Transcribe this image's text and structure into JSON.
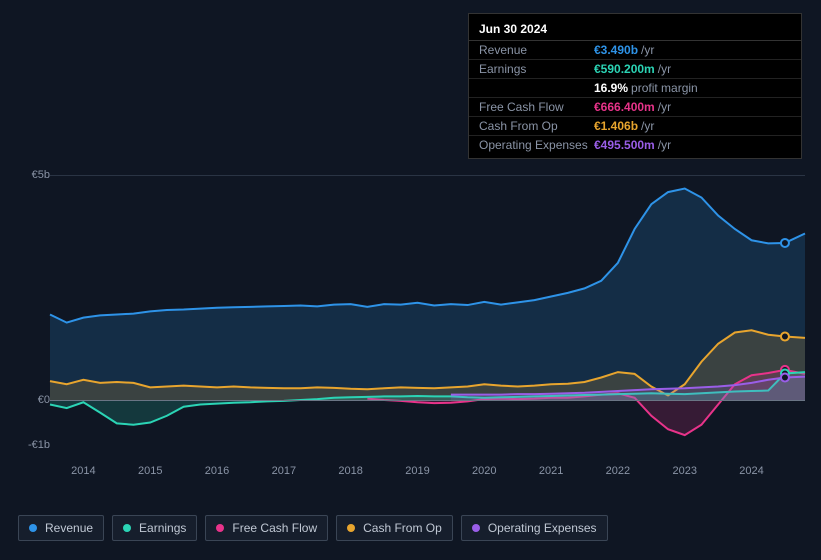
{
  "background_color": "#0f1623",
  "tooltip": {
    "date": "Jun 30 2024",
    "rows": [
      {
        "label": "Revenue",
        "value": "€3.490b",
        "unit": "/yr",
        "color": "#2e93e8"
      },
      {
        "label": "Earnings",
        "value": "€590.200m",
        "unit": "/yr",
        "color": "#2bd4b5"
      },
      {
        "label": "",
        "value": "16.9%",
        "unit": "profit margin",
        "color": "#ffffff"
      },
      {
        "label": "Free Cash Flow",
        "value": "€666.400m",
        "unit": "/yr",
        "color": "#e8338a"
      },
      {
        "label": "Cash From Op",
        "value": "€1.406b",
        "unit": "/yr",
        "color": "#e8a52e"
      },
      {
        "label": "Operating Expenses",
        "value": "€495.500m",
        "unit": "/yr",
        "color": "#9a5ee8"
      }
    ]
  },
  "chart": {
    "type": "line",
    "y_axis": {
      "min": -1,
      "max": 5,
      "ticks": [
        {
          "v": 5,
          "label": "€5b"
        },
        {
          "v": 0,
          "label": "€0"
        },
        {
          "v": -1,
          "label": "-€1b"
        }
      ],
      "label_color": "#8a94a6",
      "label_fontsize": 11
    },
    "x_axis": {
      "min": 2013.5,
      "max": 2024.8,
      "ticks": [
        2014,
        2015,
        2016,
        2017,
        2018,
        2019,
        2020,
        2021,
        2022,
        2023,
        2024
      ],
      "label_color": "#8a94a6",
      "label_fontsize": 11
    },
    "grid_color": "#2a3444",
    "zero_line_color": "#6a7585",
    "line_width": 2,
    "area_opacity": 0.18,
    "marker_x": 2024.5,
    "series": [
      {
        "name": "Revenue",
        "color": "#2e93e8",
        "marker": true,
        "points": [
          [
            2013.5,
            1.9
          ],
          [
            2013.75,
            1.72
          ],
          [
            2014,
            1.83
          ],
          [
            2014.25,
            1.88
          ],
          [
            2014.5,
            1.9
          ],
          [
            2014.75,
            1.92
          ],
          [
            2015,
            1.97
          ],
          [
            2015.25,
            2.0
          ],
          [
            2015.5,
            2.01
          ],
          [
            2015.75,
            2.03
          ],
          [
            2016,
            2.05
          ],
          [
            2016.25,
            2.06
          ],
          [
            2016.5,
            2.07
          ],
          [
            2016.75,
            2.08
          ],
          [
            2017,
            2.09
          ],
          [
            2017.25,
            2.1
          ],
          [
            2017.5,
            2.08
          ],
          [
            2017.75,
            2.12
          ],
          [
            2018,
            2.13
          ],
          [
            2018.25,
            2.07
          ],
          [
            2018.5,
            2.13
          ],
          [
            2018.75,
            2.12
          ],
          [
            2019,
            2.16
          ],
          [
            2019.25,
            2.1
          ],
          [
            2019.5,
            2.13
          ],
          [
            2019.75,
            2.11
          ],
          [
            2020,
            2.18
          ],
          [
            2020.25,
            2.12
          ],
          [
            2020.5,
            2.17
          ],
          [
            2020.75,
            2.22
          ],
          [
            2021,
            2.3
          ],
          [
            2021.25,
            2.38
          ],
          [
            2021.5,
            2.48
          ],
          [
            2021.75,
            2.65
          ],
          [
            2022,
            3.05
          ],
          [
            2022.25,
            3.8
          ],
          [
            2022.5,
            4.35
          ],
          [
            2022.75,
            4.62
          ],
          [
            2023,
            4.7
          ],
          [
            2023.25,
            4.5
          ],
          [
            2023.5,
            4.1
          ],
          [
            2023.75,
            3.8
          ],
          [
            2024,
            3.55
          ],
          [
            2024.25,
            3.48
          ],
          [
            2024.5,
            3.49
          ],
          [
            2024.8,
            3.7
          ]
        ]
      },
      {
        "name": "Cash From Op",
        "color": "#e8a52e",
        "marker": true,
        "points": [
          [
            2013.5,
            0.42
          ],
          [
            2013.75,
            0.35
          ],
          [
            2014,
            0.45
          ],
          [
            2014.25,
            0.38
          ],
          [
            2014.5,
            0.4
          ],
          [
            2014.75,
            0.38
          ],
          [
            2015,
            0.28
          ],
          [
            2015.25,
            0.3
          ],
          [
            2015.5,
            0.32
          ],
          [
            2015.75,
            0.3
          ],
          [
            2016,
            0.28
          ],
          [
            2016.25,
            0.3
          ],
          [
            2016.5,
            0.28
          ],
          [
            2016.75,
            0.27
          ],
          [
            2017,
            0.26
          ],
          [
            2017.25,
            0.26
          ],
          [
            2017.5,
            0.28
          ],
          [
            2017.75,
            0.27
          ],
          [
            2018,
            0.25
          ],
          [
            2018.25,
            0.24
          ],
          [
            2018.5,
            0.26
          ],
          [
            2018.75,
            0.28
          ],
          [
            2019,
            0.27
          ],
          [
            2019.25,
            0.26
          ],
          [
            2019.5,
            0.28
          ],
          [
            2019.75,
            0.3
          ],
          [
            2020,
            0.35
          ],
          [
            2020.25,
            0.32
          ],
          [
            2020.5,
            0.3
          ],
          [
            2020.75,
            0.32
          ],
          [
            2021,
            0.35
          ],
          [
            2021.25,
            0.36
          ],
          [
            2021.5,
            0.4
          ],
          [
            2021.75,
            0.5
          ],
          [
            2022,
            0.62
          ],
          [
            2022.25,
            0.58
          ],
          [
            2022.5,
            0.3
          ],
          [
            2022.75,
            0.1
          ],
          [
            2023,
            0.35
          ],
          [
            2023.25,
            0.85
          ],
          [
            2023.5,
            1.25
          ],
          [
            2023.75,
            1.5
          ],
          [
            2024,
            1.55
          ],
          [
            2024.25,
            1.45
          ],
          [
            2024.5,
            1.41
          ],
          [
            2024.8,
            1.38
          ]
        ]
      },
      {
        "name": "Free Cash Flow",
        "color": "#e8338a",
        "marker": true,
        "points": [
          [
            2018.25,
            0.03
          ],
          [
            2018.5,
            0.0
          ],
          [
            2018.75,
            -0.02
          ],
          [
            2019,
            -0.05
          ],
          [
            2019.25,
            -0.07
          ],
          [
            2019.5,
            -0.06
          ],
          [
            2019.75,
            -0.03
          ],
          [
            2020,
            0.02
          ],
          [
            2020.25,
            0.03
          ],
          [
            2020.5,
            0.02
          ],
          [
            2020.75,
            0.03
          ],
          [
            2021,
            0.05
          ],
          [
            2021.25,
            0.05
          ],
          [
            2021.5,
            0.08
          ],
          [
            2021.75,
            0.12
          ],
          [
            2022,
            0.15
          ],
          [
            2022.25,
            0.05
          ],
          [
            2022.5,
            -0.35
          ],
          [
            2022.75,
            -0.65
          ],
          [
            2023,
            -0.78
          ],
          [
            2023.25,
            -0.55
          ],
          [
            2023.5,
            -0.1
          ],
          [
            2023.75,
            0.35
          ],
          [
            2024,
            0.55
          ],
          [
            2024.25,
            0.6
          ],
          [
            2024.5,
            0.67
          ],
          [
            2024.8,
            0.58
          ]
        ]
      },
      {
        "name": "Earnings",
        "color": "#2bd4b5",
        "marker": true,
        "points": [
          [
            2013.5,
            -0.1
          ],
          [
            2013.75,
            -0.18
          ],
          [
            2014,
            -0.05
          ],
          [
            2014.25,
            -0.28
          ],
          [
            2014.5,
            -0.52
          ],
          [
            2014.75,
            -0.55
          ],
          [
            2015,
            -0.5
          ],
          [
            2015.25,
            -0.35
          ],
          [
            2015.5,
            -0.15
          ],
          [
            2015.75,
            -0.1
          ],
          [
            2016,
            -0.08
          ],
          [
            2016.25,
            -0.06
          ],
          [
            2016.5,
            -0.05
          ],
          [
            2016.75,
            -0.03
          ],
          [
            2017,
            -0.02
          ],
          [
            2017.25,
            0.0
          ],
          [
            2017.5,
            0.02
          ],
          [
            2017.75,
            0.05
          ],
          [
            2018,
            0.06
          ],
          [
            2018.25,
            0.07
          ],
          [
            2018.5,
            0.08
          ],
          [
            2018.75,
            0.08
          ],
          [
            2019,
            0.09
          ],
          [
            2019.25,
            0.08
          ],
          [
            2019.5,
            0.08
          ],
          [
            2019.75,
            0.06
          ],
          [
            2020,
            0.05
          ],
          [
            2020.25,
            0.06
          ],
          [
            2020.5,
            0.07
          ],
          [
            2020.75,
            0.08
          ],
          [
            2021,
            0.09
          ],
          [
            2021.25,
            0.1
          ],
          [
            2021.5,
            0.11
          ],
          [
            2021.75,
            0.12
          ],
          [
            2022,
            0.13
          ],
          [
            2022.25,
            0.14
          ],
          [
            2022.5,
            0.15
          ],
          [
            2022.75,
            0.14
          ],
          [
            2023,
            0.13
          ],
          [
            2023.25,
            0.15
          ],
          [
            2023.5,
            0.17
          ],
          [
            2023.75,
            0.19
          ],
          [
            2024,
            0.2
          ],
          [
            2024.25,
            0.21
          ],
          [
            2024.5,
            0.59
          ],
          [
            2024.8,
            0.62
          ]
        ]
      },
      {
        "name": "Operating Expenses",
        "color": "#9a5ee8",
        "marker": true,
        "points": [
          [
            2019.5,
            0.12
          ],
          [
            2019.75,
            0.12
          ],
          [
            2020,
            0.12
          ],
          [
            2020.25,
            0.12
          ],
          [
            2020.5,
            0.13
          ],
          [
            2020.75,
            0.13
          ],
          [
            2021,
            0.14
          ],
          [
            2021.25,
            0.15
          ],
          [
            2021.5,
            0.16
          ],
          [
            2021.75,
            0.18
          ],
          [
            2022,
            0.2
          ],
          [
            2022.25,
            0.22
          ],
          [
            2022.5,
            0.24
          ],
          [
            2022.75,
            0.25
          ],
          [
            2023,
            0.26
          ],
          [
            2023.25,
            0.28
          ],
          [
            2023.5,
            0.3
          ],
          [
            2023.75,
            0.33
          ],
          [
            2024,
            0.38
          ],
          [
            2024.25,
            0.45
          ],
          [
            2024.5,
            0.5
          ],
          [
            2024.8,
            0.52
          ]
        ]
      }
    ]
  },
  "legend": {
    "items": [
      {
        "label": "Revenue",
        "color": "#2e93e8"
      },
      {
        "label": "Earnings",
        "color": "#2bd4b5"
      },
      {
        "label": "Free Cash Flow",
        "color": "#e8338a"
      },
      {
        "label": "Cash From Op",
        "color": "#e8a52e"
      },
      {
        "label": "Operating Expenses",
        "color": "#9a5ee8"
      }
    ],
    "border_color": "#3a4555"
  }
}
